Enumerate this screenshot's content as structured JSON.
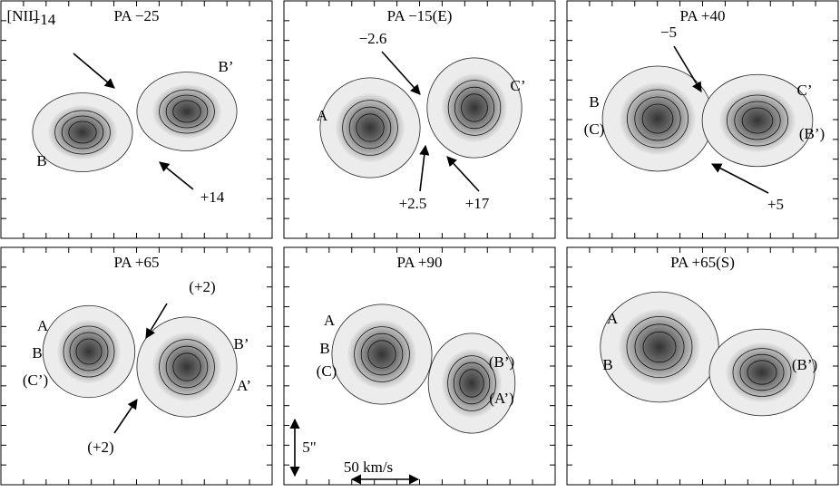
{
  "figure_label": "[NII]",
  "panels": [
    {
      "title": "PA −25",
      "labels": [
        "−14",
        "B’",
        "B",
        "+14"
      ]
    },
    {
      "title": "PA −15(E)",
      "labels": [
        "−2.6",
        "C’",
        "A",
        "+2.5",
        "+17"
      ]
    },
    {
      "title": "PA +40",
      "labels": [
        "−5",
        "B",
        "C’",
        "(C)",
        "(B’)",
        "+5"
      ]
    },
    {
      "title": "PA +65",
      "labels": [
        "(+2)",
        "A",
        "B",
        "B’",
        "(C’)",
        "A’",
        "(+2)"
      ]
    },
    {
      "title": "PA +90",
      "labels": [
        "A",
        "B",
        "(C)",
        "(B’)",
        "(A’)"
      ]
    },
    {
      "title": "PA +65(S)",
      "labels": [
        "A",
        "B",
        "(B’)"
      ]
    }
  ],
  "scale_bar": {
    "vertical": "5\"",
    "horizontal": "50 km/s"
  }
}
